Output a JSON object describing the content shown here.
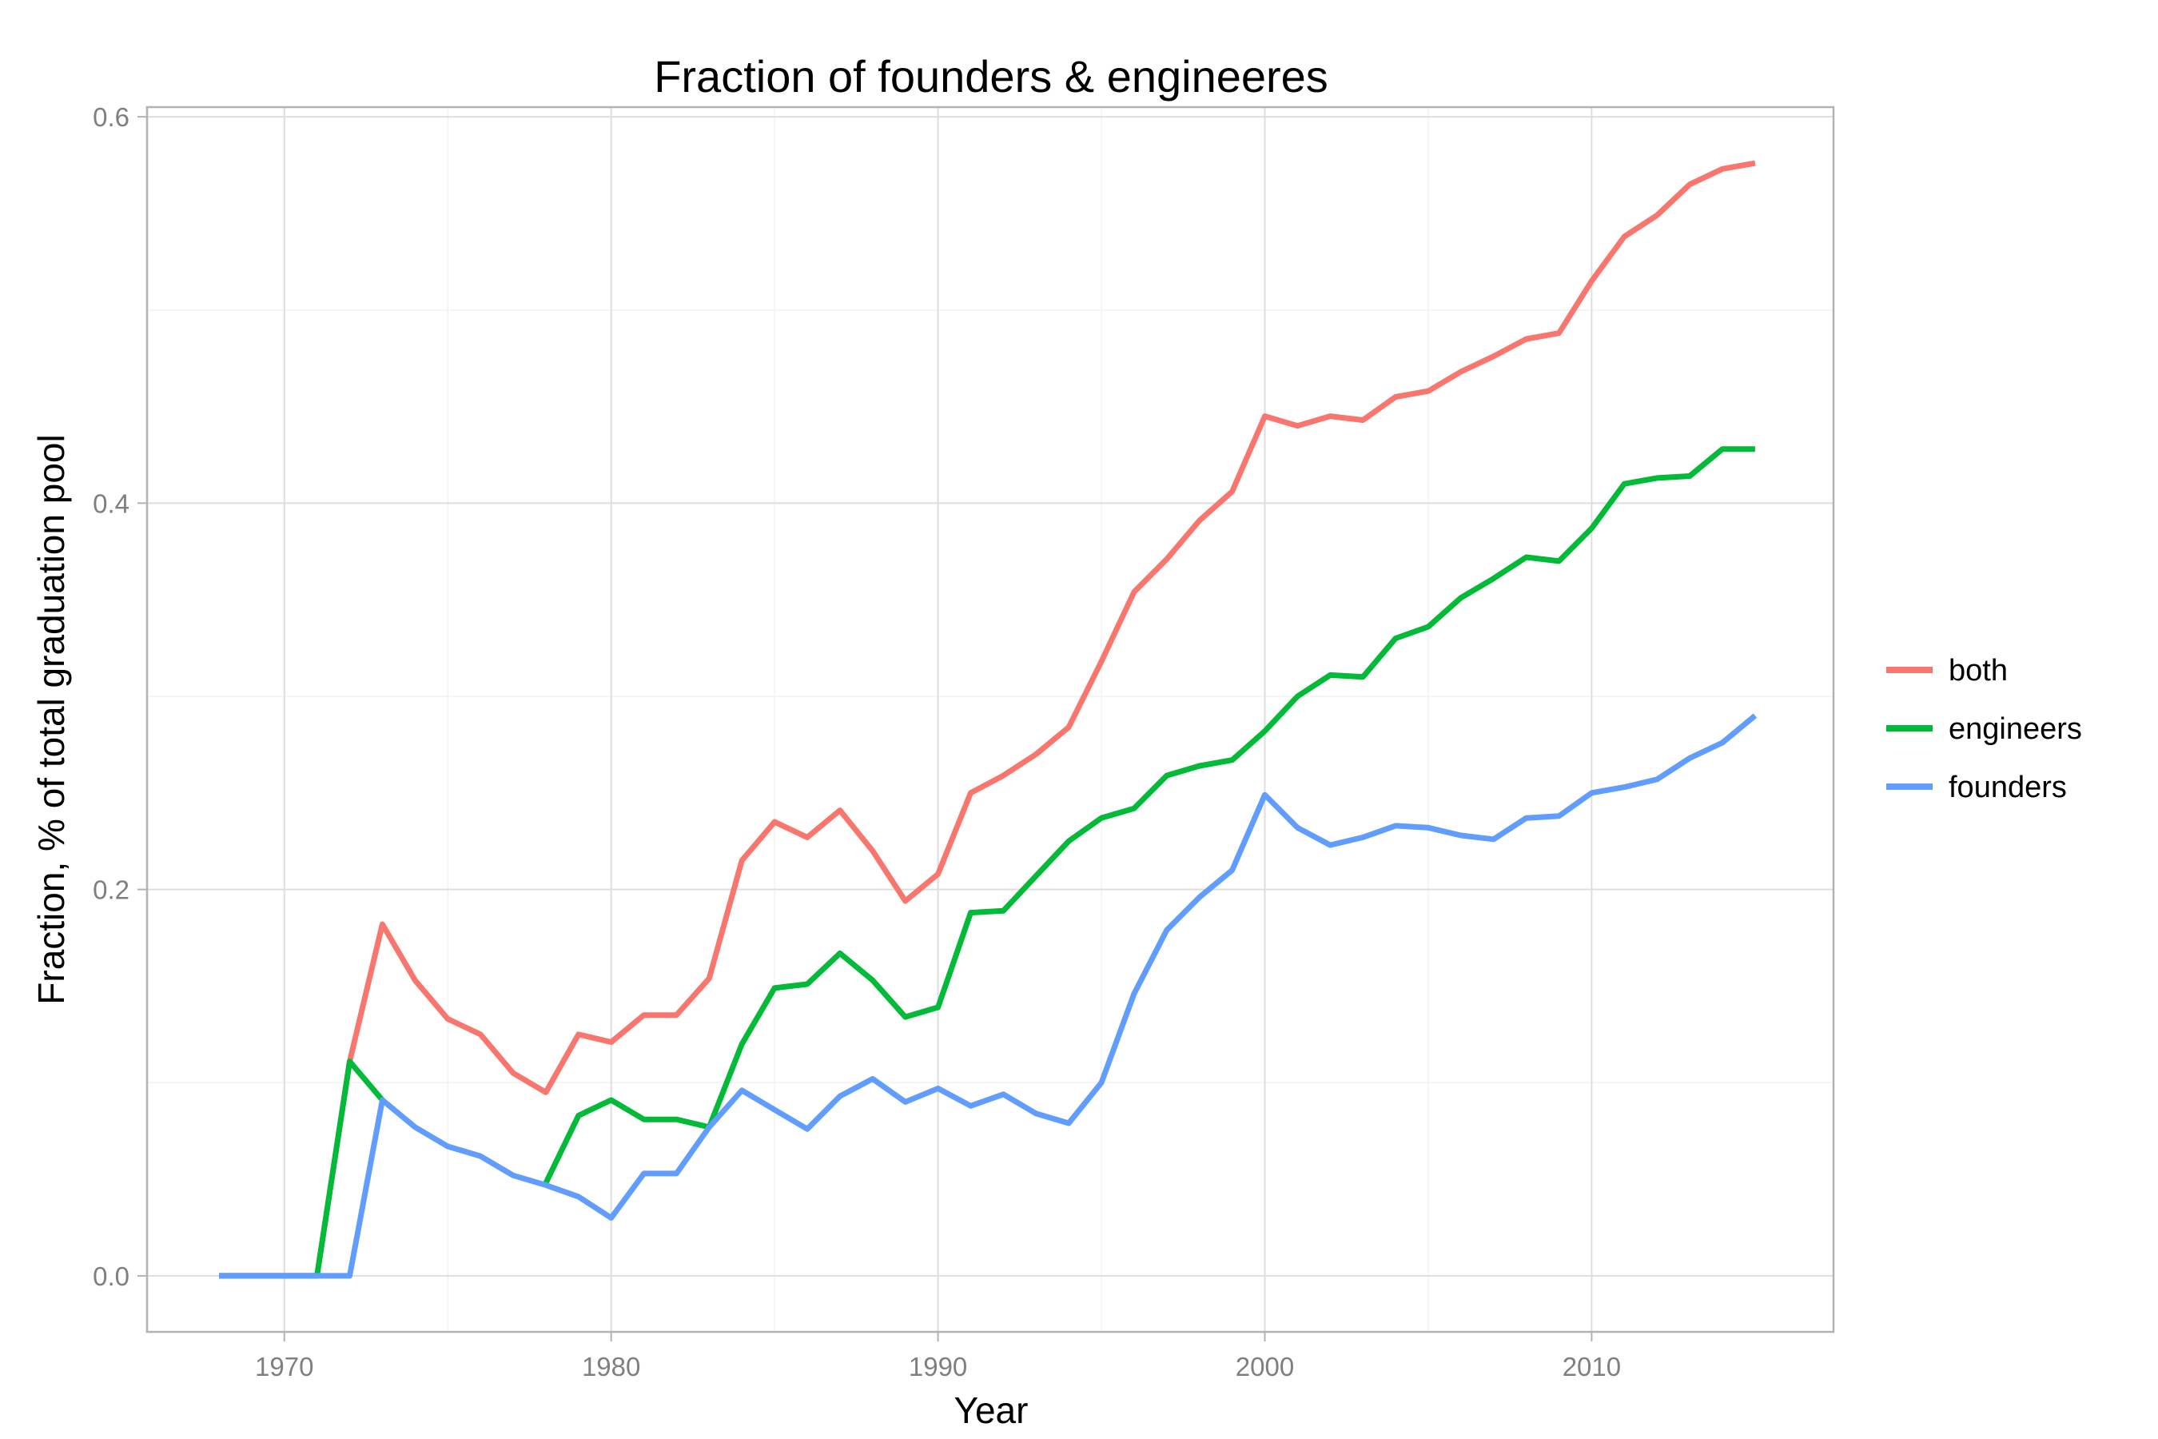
{
  "chart_data": {
    "type": "line",
    "title": "Fraction of founders & engineeres",
    "xlabel": "Year",
    "ylabel": "Fraction, % of total graduation pool",
    "xlim": [
      1965.8,
      2017.4
    ],
    "ylim": [
      -0.029,
      0.605
    ],
    "x_ticks": [
      1970,
      1980,
      1990,
      2000,
      2010
    ],
    "x_tick_labels": [
      "1970",
      "1980",
      "1990",
      "2000",
      "2010"
    ],
    "y_ticks": [
      0.0,
      0.2,
      0.4,
      0.6
    ],
    "y_tick_labels": [
      "0.0",
      "0.2",
      "0.4",
      "0.6"
    ],
    "grid": true,
    "legend_position": "right",
    "x": [
      1968,
      1969,
      1970,
      1971,
      1972,
      1973,
      1974,
      1975,
      1976,
      1977,
      1978,
      1979,
      1980,
      1981,
      1982,
      1983,
      1984,
      1985,
      1986,
      1987,
      1988,
      1989,
      1990,
      1991,
      1992,
      1993,
      1994,
      1995,
      1996,
      1997,
      1998,
      1999,
      2000,
      2001,
      2002,
      2003,
      2004,
      2005,
      2006,
      2007,
      2008,
      2009,
      2010,
      2011,
      2012,
      2013,
      2014,
      2015
    ],
    "series": [
      {
        "name": "both",
        "color": "#f8766d",
        "values": [
          0.0,
          0.0,
          0.0,
          0.0,
          0.111,
          0.182,
          0.153,
          0.133,
          0.125,
          0.105,
          0.095,
          0.125,
          0.121,
          0.135,
          0.135,
          0.154,
          0.215,
          0.235,
          0.227,
          0.241,
          0.22,
          0.194,
          0.208,
          0.25,
          0.259,
          0.27,
          0.284,
          0.318,
          0.354,
          0.371,
          0.391,
          0.406,
          0.445,
          0.44,
          0.445,
          0.443,
          0.455,
          0.458,
          0.468,
          0.476,
          0.485,
          0.488,
          0.515,
          0.538,
          0.549,
          0.565,
          0.573,
          0.576
        ]
      },
      {
        "name": "engineers",
        "color": "#00ba38",
        "values": [
          0.0,
          0.0,
          0.0,
          0.0,
          0.111,
          0.091,
          null,
          null,
          null,
          null,
          0.048,
          0.083,
          0.091,
          0.081,
          0.081,
          0.077,
          0.12,
          0.149,
          0.151,
          0.167,
          0.153,
          0.134,
          0.139,
          0.188,
          0.189,
          0.207,
          0.225,
          0.237,
          0.242,
          0.259,
          0.264,
          0.267,
          0.282,
          0.3,
          0.311,
          0.31,
          0.33,
          0.336,
          0.351,
          0.361,
          0.372,
          0.37,
          0.387,
          0.41,
          0.413,
          0.414,
          0.428,
          0.428
        ]
      },
      {
        "name": "founders",
        "color": "#619cff",
        "values": [
          0.0,
          0.0,
          0.0,
          0.0,
          0.0,
          0.091,
          0.077,
          0.067,
          0.062,
          0.052,
          0.047,
          0.041,
          0.03,
          0.053,
          0.053,
          0.077,
          0.096,
          0.086,
          0.076,
          0.093,
          0.102,
          0.09,
          0.097,
          0.088,
          0.094,
          0.084,
          0.079,
          0.1,
          0.146,
          0.179,
          0.196,
          0.21,
          0.249,
          0.232,
          0.223,
          0.227,
          0.233,
          0.232,
          0.228,
          0.226,
          0.237,
          0.238,
          0.25,
          0.253,
          0.257,
          0.268,
          0.276,
          0.29
        ]
      }
    ]
  }
}
